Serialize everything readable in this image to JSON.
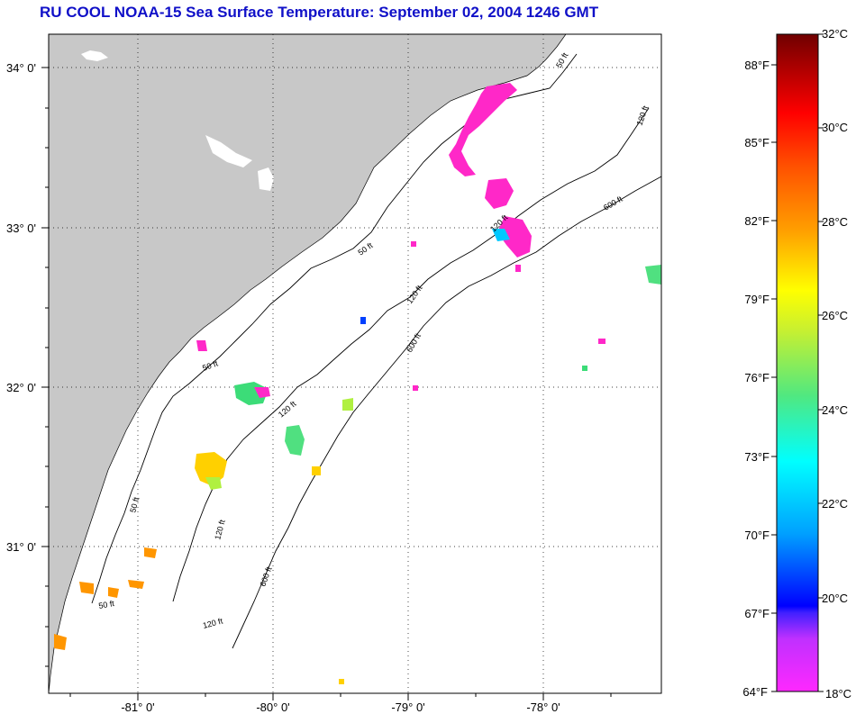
{
  "title": "RU COOL  NOAA-15  Sea Surface Temperature:  September 02, 2004 1246 GMT",
  "map": {
    "lat_labels": [
      "34° 0'",
      "33° 0'",
      "32° 0'",
      "31° 0'"
    ],
    "lon_labels": [
      "-81° 0'",
      "-80° 0'",
      "-79° 0'",
      "-78° 0'"
    ],
    "contour_labels": [
      "50 ft",
      "50 ft",
      "50 ft",
      "50 ft",
      "50 ft",
      "120 ft",
      "120 ft",
      "120 ft",
      "120 ft",
      "120 ft",
      "120 ft",
      "600 ft",
      "600 ft",
      "600 ft"
    ],
    "colors": {
      "land": "#c8c8c8",
      "ocean": "#ffffff",
      "title": "#1010c8"
    }
  },
  "colorbar": {
    "celsius_labels": [
      "32°C",
      "30°C",
      "28°C",
      "26°C",
      "24°C",
      "22°C",
      "20°C",
      "18°C"
    ],
    "fahrenheit_labels": [
      "88°F",
      "85°F",
      "82°F",
      "79°F",
      "76°F",
      "73°F",
      "70°F",
      "67°F",
      "64°F"
    ],
    "range_celsius": [
      18,
      32
    ],
    "colors": [
      "#ff28ff",
      "#9b30e0",
      "#0000ff",
      "#00b0ff",
      "#00ffff",
      "#3cdc78",
      "#b4f040",
      "#ffff00",
      "#ff9600",
      "#ff4000",
      "#ff0000",
      "#780000"
    ]
  }
}
